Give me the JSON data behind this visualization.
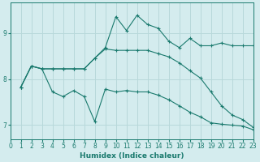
{
  "xlabel": "Humidex (Indice chaleur)",
  "ylabel": "",
  "bg_color": "#d4ecee",
  "line_color": "#1a7a6e",
  "grid_color": "#b8d8da",
  "xlim": [
    0,
    23
  ],
  "ylim": [
    6.7,
    9.65
  ],
  "yticks": [
    7,
    8,
    9
  ],
  "xticks": [
    0,
    1,
    2,
    3,
    4,
    5,
    6,
    7,
    8,
    9,
    10,
    11,
    12,
    13,
    14,
    15,
    16,
    17,
    18,
    19,
    20,
    21,
    22,
    23
  ],
  "lines": [
    {
      "x": [
        1,
        2,
        3,
        4,
        5,
        6,
        7,
        8,
        9,
        10,
        11,
        12,
        13,
        14,
        15,
        16,
        17,
        18,
        19,
        20,
        21,
        22,
        23
      ],
      "y": [
        7.82,
        8.28,
        8.22,
        8.22,
        8.22,
        8.22,
        8.22,
        8.45,
        8.68,
        9.35,
        9.05,
        9.38,
        9.18,
        9.1,
        8.82,
        8.68,
        8.88,
        8.72,
        8.72,
        8.78,
        8.72,
        8.72,
        8.72
      ]
    },
    {
      "x": [
        1,
        2,
        3,
        4,
        5,
        6,
        7,
        8,
        9,
        10,
        11,
        12,
        13,
        14,
        15,
        16,
        17,
        18,
        19,
        20,
        21,
        22,
        23
      ],
      "y": [
        7.82,
        8.28,
        8.22,
        8.22,
        8.22,
        8.22,
        8.22,
        8.45,
        8.65,
        8.62,
        8.62,
        8.62,
        8.62,
        8.55,
        8.48,
        8.35,
        8.18,
        8.02,
        7.72,
        7.42,
        7.22,
        7.12,
        6.95
      ]
    },
    {
      "x": [
        1,
        2,
        3,
        4,
        5,
        6,
        7,
        8,
        9,
        10,
        11,
        12,
        13,
        14,
        15,
        16,
        17,
        18,
        19,
        20,
        21,
        22,
        23
      ],
      "y": [
        7.82,
        8.28,
        8.22,
        7.72,
        7.62,
        7.75,
        7.62,
        7.08,
        7.78,
        7.72,
        7.75,
        7.72,
        7.72,
        7.65,
        7.55,
        7.42,
        7.28,
        7.18,
        7.05,
        7.02,
        7.0,
        6.98,
        6.9
      ]
    }
  ]
}
